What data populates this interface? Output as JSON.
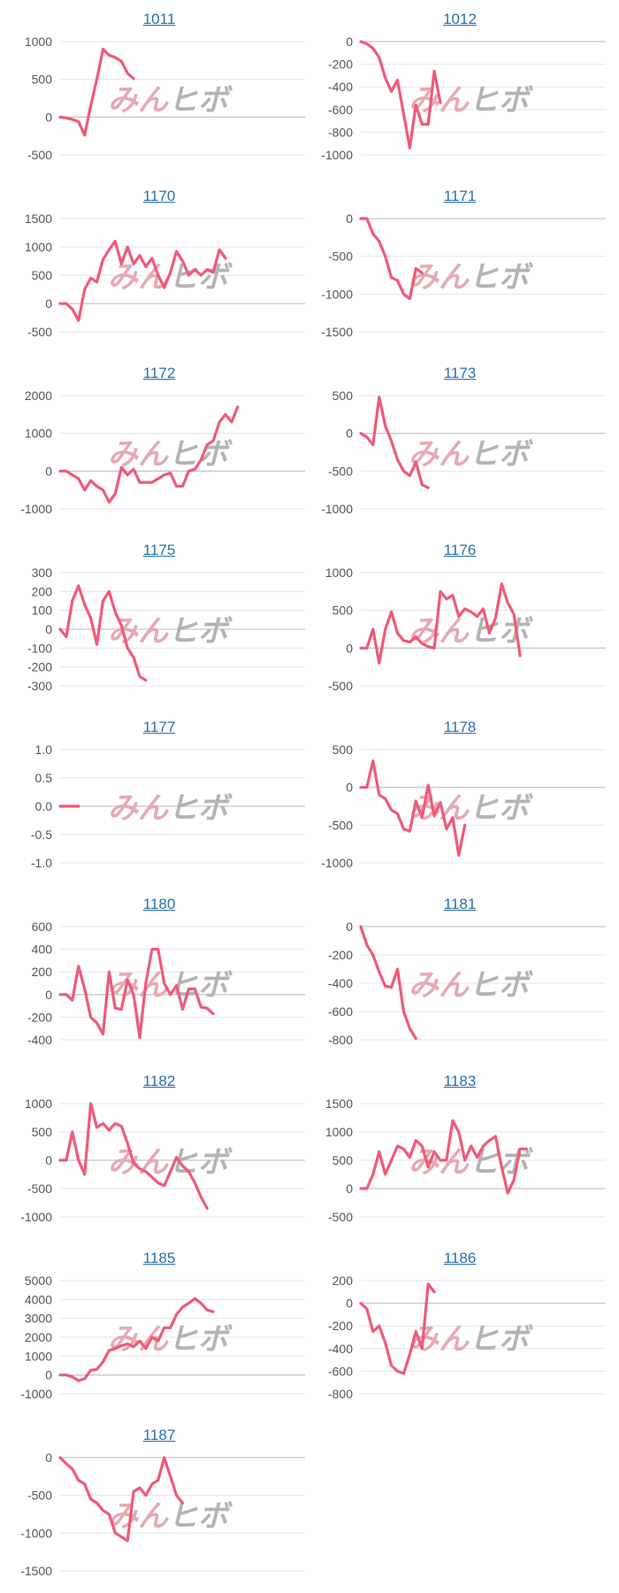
{
  "watermark": {
    "left_text": "みん",
    "right_text": "ヒボ"
  },
  "colors": {
    "line": "#ef5a78",
    "grid": "#e6e6e6",
    "zero": "#c8c8c8",
    "tick": "#555555",
    "title": "#2a6fad"
  },
  "chart_data": [
    {
      "type": "line",
      "title": "1011",
      "yticks": [
        1000,
        500,
        0,
        -500
      ],
      "ylim": [
        -500,
        1000
      ],
      "xlim": [
        0,
        40
      ],
      "values": [
        0,
        -10,
        -30,
        -60,
        -240,
        150,
        500,
        900,
        820,
        790,
        740,
        580,
        510
      ]
    },
    {
      "type": "line",
      "title": "1012",
      "yticks": [
        0,
        -200,
        -400,
        -600,
        -800,
        -1000
      ],
      "ylim": [
        -1000,
        0
      ],
      "xlim": [
        0,
        40
      ],
      "values": [
        0,
        -20,
        -60,
        -140,
        -320,
        -440,
        -340,
        -640,
        -940,
        -560,
        -730,
        -730,
        -260,
        -540
      ]
    },
    {
      "type": "line",
      "title": "1170",
      "yticks": [
        1500,
        1000,
        500,
        0,
        -500
      ],
      "ylim": [
        -500,
        1500
      ],
      "xlim": [
        0,
        40
      ],
      "values": [
        0,
        0,
        -100,
        -300,
        250,
        450,
        380,
        780,
        950,
        1100,
        700,
        1000,
        700,
        850,
        650,
        800,
        500,
        280,
        550,
        920,
        750,
        500,
        600,
        500,
        600,
        550,
        950,
        800
      ]
    },
    {
      "type": "line",
      "title": "1171",
      "yticks": [
        0,
        -500,
        -1000,
        -1500
      ],
      "ylim": [
        -1500,
        0
      ],
      "xlim": [
        0,
        40
      ],
      "values": [
        0,
        0,
        -200,
        -300,
        -500,
        -780,
        -820,
        -1000,
        -1060,
        -660,
        -720
      ]
    },
    {
      "type": "line",
      "title": "1172",
      "yticks": [
        2000,
        1000,
        0,
        -1000
      ],
      "ylim": [
        -1000,
        2000
      ],
      "xlim": [
        0,
        40
      ],
      "values": [
        0,
        0,
        -100,
        -200,
        -500,
        -250,
        -400,
        -500,
        -820,
        -600,
        100,
        -100,
        50,
        -300,
        -300,
        -300,
        -200,
        -100,
        -50,
        -400,
        -400,
        0,
        50,
        300,
        700,
        800,
        1300,
        1500,
        1300,
        1700
      ]
    },
    {
      "type": "line",
      "title": "1173",
      "yticks": [
        500,
        0,
        -500,
        -1000
      ],
      "ylim": [
        -1000,
        500
      ],
      "xlim": [
        0,
        40
      ],
      "values": [
        0,
        -50,
        -150,
        480,
        100,
        -100,
        -350,
        -500,
        -560,
        -380,
        -680,
        -720
      ]
    },
    {
      "type": "line",
      "title": "1175",
      "yticks": [
        300,
        200,
        100,
        0,
        -100,
        -200,
        -300
      ],
      "ylim": [
        -300,
        300
      ],
      "xlim": [
        0,
        40
      ],
      "values": [
        0,
        -40,
        150,
        230,
        130,
        60,
        -80,
        150,
        200,
        90,
        20,
        -100,
        -150,
        -250,
        -270
      ]
    },
    {
      "type": "line",
      "title": "1176",
      "yticks": [
        1000,
        500,
        0,
        -500
      ],
      "ylim": [
        -500,
        1000
      ],
      "xlim": [
        0,
        40
      ],
      "values": [
        0,
        0,
        250,
        -200,
        250,
        480,
        200,
        100,
        80,
        150,
        60,
        20,
        0,
        750,
        650,
        700,
        420,
        520,
        480,
        420,
        520,
        200,
        400,
        850,
        600,
        450,
        -100
      ]
    },
    {
      "type": "line",
      "title": "1177",
      "yticks": [
        1.0,
        0.5,
        0,
        -0.5,
        -1.0
      ],
      "ylim": [
        -1.0,
        1.0
      ],
      "xlim": [
        0,
        40
      ],
      "values": [
        0,
        0,
        0,
        0
      ]
    },
    {
      "type": "line",
      "title": "1178",
      "yticks": [
        500,
        0,
        -500,
        -1000
      ],
      "ylim": [
        -1000,
        500
      ],
      "xlim": [
        0,
        40
      ],
      "values": [
        0,
        0,
        350,
        -100,
        -150,
        -300,
        -350,
        -550,
        -580,
        -180,
        -400,
        30,
        -380,
        -200,
        -550,
        -400,
        -900,
        -500
      ]
    },
    {
      "type": "line",
      "title": "1180",
      "yticks": [
        600,
        400,
        200,
        0,
        -200,
        -400
      ],
      "ylim": [
        -400,
        600
      ],
      "xlim": [
        0,
        40
      ],
      "values": [
        0,
        0,
        -50,
        250,
        50,
        -200,
        -250,
        -350,
        200,
        -120,
        -130,
        130,
        0,
        -380,
        100,
        400,
        400,
        100,
        0,
        80,
        -130,
        50,
        50,
        -110,
        -120,
        -170
      ]
    },
    {
      "type": "line",
      "title": "1181",
      "yticks": [
        0,
        -200,
        -400,
        -600,
        -800
      ],
      "ylim": [
        -800,
        0
      ],
      "xlim": [
        0,
        40
      ],
      "values": [
        0,
        -130,
        -200,
        -320,
        -420,
        -430,
        -300,
        -600,
        -720,
        -790
      ]
    },
    {
      "type": "line",
      "title": "1182",
      "yticks": [
        1000,
        500,
        0,
        -500,
        -1000
      ],
      "ylim": [
        -1000,
        1000
      ],
      "xlim": [
        0,
        40
      ],
      "values": [
        0,
        0,
        500,
        0,
        -250,
        1000,
        580,
        650,
        530,
        650,
        600,
        300,
        -50,
        -150,
        -200,
        -300,
        -400,
        -450,
        -200,
        50,
        -100,
        -200,
        -400,
        -650,
        -850
      ]
    },
    {
      "type": "line",
      "title": "1183",
      "yticks": [
        1500,
        1000,
        500,
        0,
        -500
      ],
      "ylim": [
        -500,
        1500
      ],
      "xlim": [
        0,
        40
      ],
      "values": [
        0,
        0,
        250,
        650,
        250,
        500,
        750,
        700,
        550,
        850,
        750,
        380,
        650,
        500,
        500,
        1200,
        1000,
        500,
        750,
        550,
        750,
        850,
        920,
        380,
        -80,
        150,
        700,
        700
      ]
    },
    {
      "type": "line",
      "title": "1185",
      "yticks": [
        5000,
        4000,
        3000,
        2000,
        1000,
        0,
        -1000
      ],
      "ylim": [
        -1000,
        5000
      ],
      "xlim": [
        0,
        40
      ],
      "values": [
        0,
        0,
        -100,
        -300,
        -200,
        250,
        300,
        700,
        1300,
        1400,
        1550,
        1650,
        1500,
        1800,
        1400,
        2000,
        1800,
        2500,
        2500,
        3200,
        3600,
        3800,
        4050,
        3800,
        3450,
        3350
      ]
    },
    {
      "type": "line",
      "title": "1186",
      "yticks": [
        200,
        0,
        -200,
        -400,
        -600,
        -800
      ],
      "ylim": [
        -800,
        200
      ],
      "xlim": [
        0,
        40
      ],
      "values": [
        0,
        -50,
        -250,
        -200,
        -350,
        -550,
        -600,
        -620,
        -450,
        -250,
        -400,
        170,
        100
      ]
    },
    {
      "type": "line",
      "title": "1187",
      "yticks": [
        0,
        -500,
        -1000,
        -1500
      ],
      "ylim": [
        -1500,
        0
      ],
      "xlim": [
        0,
        40
      ],
      "values": [
        0,
        -80,
        -150,
        -300,
        -350,
        -550,
        -600,
        -700,
        -750,
        -1000,
        -1050,
        -1100,
        -450,
        -400,
        -500,
        -350,
        -300,
        0,
        -250,
        -500,
        -600
      ]
    }
  ]
}
